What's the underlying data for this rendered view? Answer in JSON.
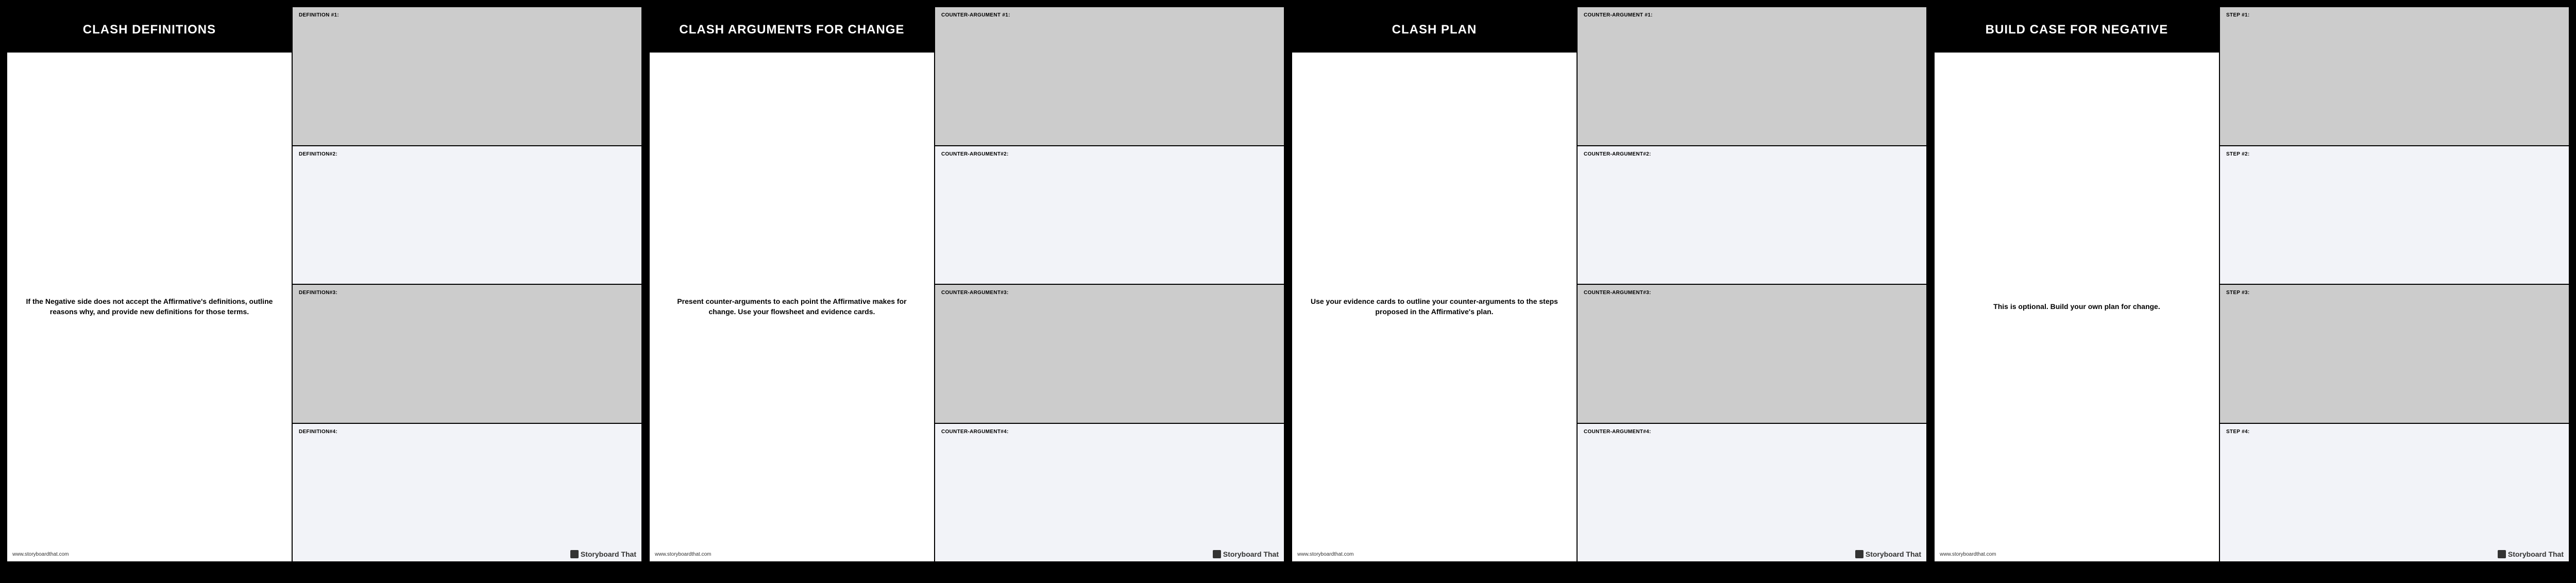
{
  "footer_url": "www.storyboardthat.com",
  "brand_name": "Storyboard That",
  "panels": [
    {
      "title": "CLASH DEFINITIONS",
      "description": "If the Negative side does not accept the Affirmative's definitions, outline reasons why, and provide new definitions for those terms.",
      "cells": [
        {
          "label": "DEFINITION #1:",
          "shade": "gray"
        },
        {
          "label": "DEFINITION#2:",
          "shade": "light"
        },
        {
          "label": "DEFINITION#3:",
          "shade": "gray"
        },
        {
          "label": "DEFINITION#4:",
          "shade": "light"
        }
      ]
    },
    {
      "title": "CLASH ARGUMENTS FOR CHANGE",
      "description": "Present counter-arguments to each point the Affirmative makes for change. Use your flowsheet and evidence cards.",
      "cells": [
        {
          "label": "COUNTER-ARGUMENT #1:",
          "shade": "gray"
        },
        {
          "label": "COUNTER-ARGUMENT#2:",
          "shade": "light"
        },
        {
          "label": "COUNTER-ARGUMENT#3:",
          "shade": "gray"
        },
        {
          "label": "COUNTER-ARGUMENT#4:",
          "shade": "light"
        }
      ]
    },
    {
      "title": "CLASH PLAN",
      "description": "Use your evidence cards to outline your counter-arguments to the steps proposed in the Affirmative's plan.",
      "cells": [
        {
          "label": "COUNTER-ARGUMENT #1:",
          "shade": "gray"
        },
        {
          "label": "COUNTER-ARGUMENT#2:",
          "shade": "light"
        },
        {
          "label": "COUNTER-ARGUMENT#3:",
          "shade": "gray"
        },
        {
          "label": "COUNTER-ARGUMENT#4:",
          "shade": "light"
        }
      ]
    },
    {
      "title": "BUILD CASE FOR NEGATIVE",
      "description": "This is optional. Build your own plan for change.",
      "cells": [
        {
          "label": "STEP #1:",
          "shade": "gray"
        },
        {
          "label": "STEP #2:",
          "shade": "light"
        },
        {
          "label": "STEP #3:",
          "shade": "gray"
        },
        {
          "label": "STEP #4:",
          "shade": "light"
        }
      ]
    }
  ]
}
